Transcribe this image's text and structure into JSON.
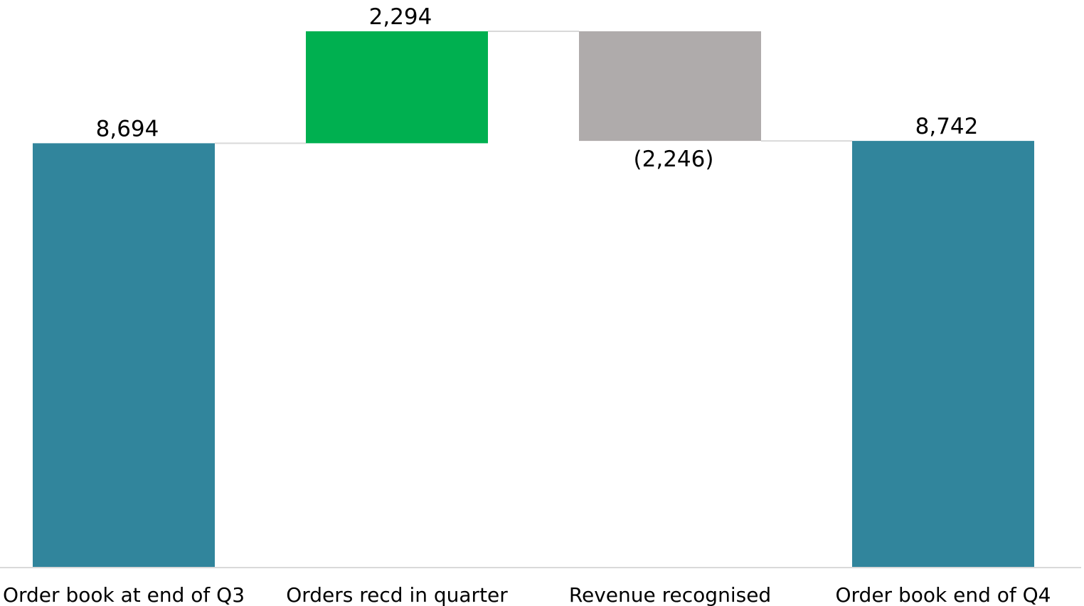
{
  "chart_data": {
    "type": "waterfall",
    "categories": [
      "Order book at end of Q3",
      "Orders recd in quarter",
      "Revenue recognised",
      "Order book end of Q4"
    ],
    "values": [
      8694,
      2294,
      -2246,
      8742
    ],
    "kinds": [
      "total",
      "increase",
      "decrease",
      "total"
    ],
    "data_labels": [
      "8,694",
      "2,294",
      "(2,246)",
      "8,742"
    ],
    "title": "",
    "xlabel": "",
    "ylabel": "",
    "ylim": [
      0,
      11000
    ],
    "grid": false,
    "legend": "none",
    "colors": {
      "total": "#31859c",
      "increase": "#00b050",
      "decrease": "#afabab",
      "connector": "#d9d9d9",
      "axis": "#d9d9d9"
    }
  }
}
